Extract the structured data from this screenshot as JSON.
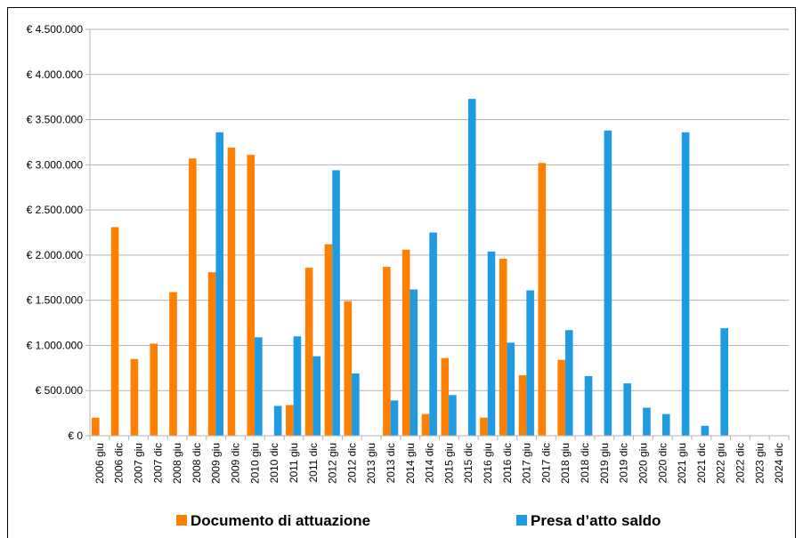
{
  "chart_data": {
    "type": "bar",
    "categories": [
      "2006 giu",
      "2006 dic",
      "2007 giu",
      "2007 dic",
      "2008 giu",
      "2008 dic",
      "2009 giu",
      "2009 dic",
      "2010 giu",
      "2010 dic",
      "2011 giu",
      "2011 dic",
      "2012 giu",
      "2012 dic",
      "2013 giu",
      "2013 dic",
      "2014 giu",
      "2014 dic",
      "2015 giu",
      "2015 dic",
      "2016 giu",
      "2016 dic",
      "2017 giu",
      "2017 dic",
      "2018 giu",
      "2018 dic",
      "2019 giu",
      "2019 dic",
      "2020 giu",
      "2020 dic",
      "2021 giu",
      "2021 dic",
      "2022 giu",
      "2022 dic",
      "2023 giu",
      "2024 dic"
    ],
    "series": [
      {
        "name": "Documento di attuazione",
        "color": "#ff8000",
        "values": [
          200000,
          2310000,
          850000,
          1020000,
          1590000,
          3070000,
          1810000,
          3190000,
          3110000,
          0,
          340000,
          1860000,
          2120000,
          1490000,
          0,
          1870000,
          2060000,
          240000,
          860000,
          0,
          200000,
          1960000,
          670000,
          3020000,
          840000,
          0,
          0,
          0,
          0,
          0,
          0,
          0,
          0,
          0,
          0,
          0
        ]
      },
      {
        "name": "Presa d’atto saldo",
        "color": "#1e9be3",
        "values": [
          0,
          0,
          0,
          0,
          0,
          0,
          3360000,
          0,
          1090000,
          330000,
          1100000,
          880000,
          2940000,
          690000,
          0,
          390000,
          1620000,
          2250000,
          450000,
          3730000,
          2040000,
          1030000,
          1610000,
          0,
          1170000,
          660000,
          3380000,
          580000,
          310000,
          240000,
          3360000,
          110000,
          1190000,
          0,
          0,
          0
        ]
      }
    ],
    "yticks": [
      "€ 0",
      "€ 500.000",
      "€ 1.000.000",
      "€ 1.500.000",
      "€ 2.000.000",
      "€ 2.500.000",
      "€ 3.000.000",
      "€ 3.500.000",
      "€ 4.000.000",
      "€ 4.500.000"
    ],
    "ylim": [
      0,
      4500000
    ],
    "grid": true,
    "legend_position": "bottom"
  }
}
